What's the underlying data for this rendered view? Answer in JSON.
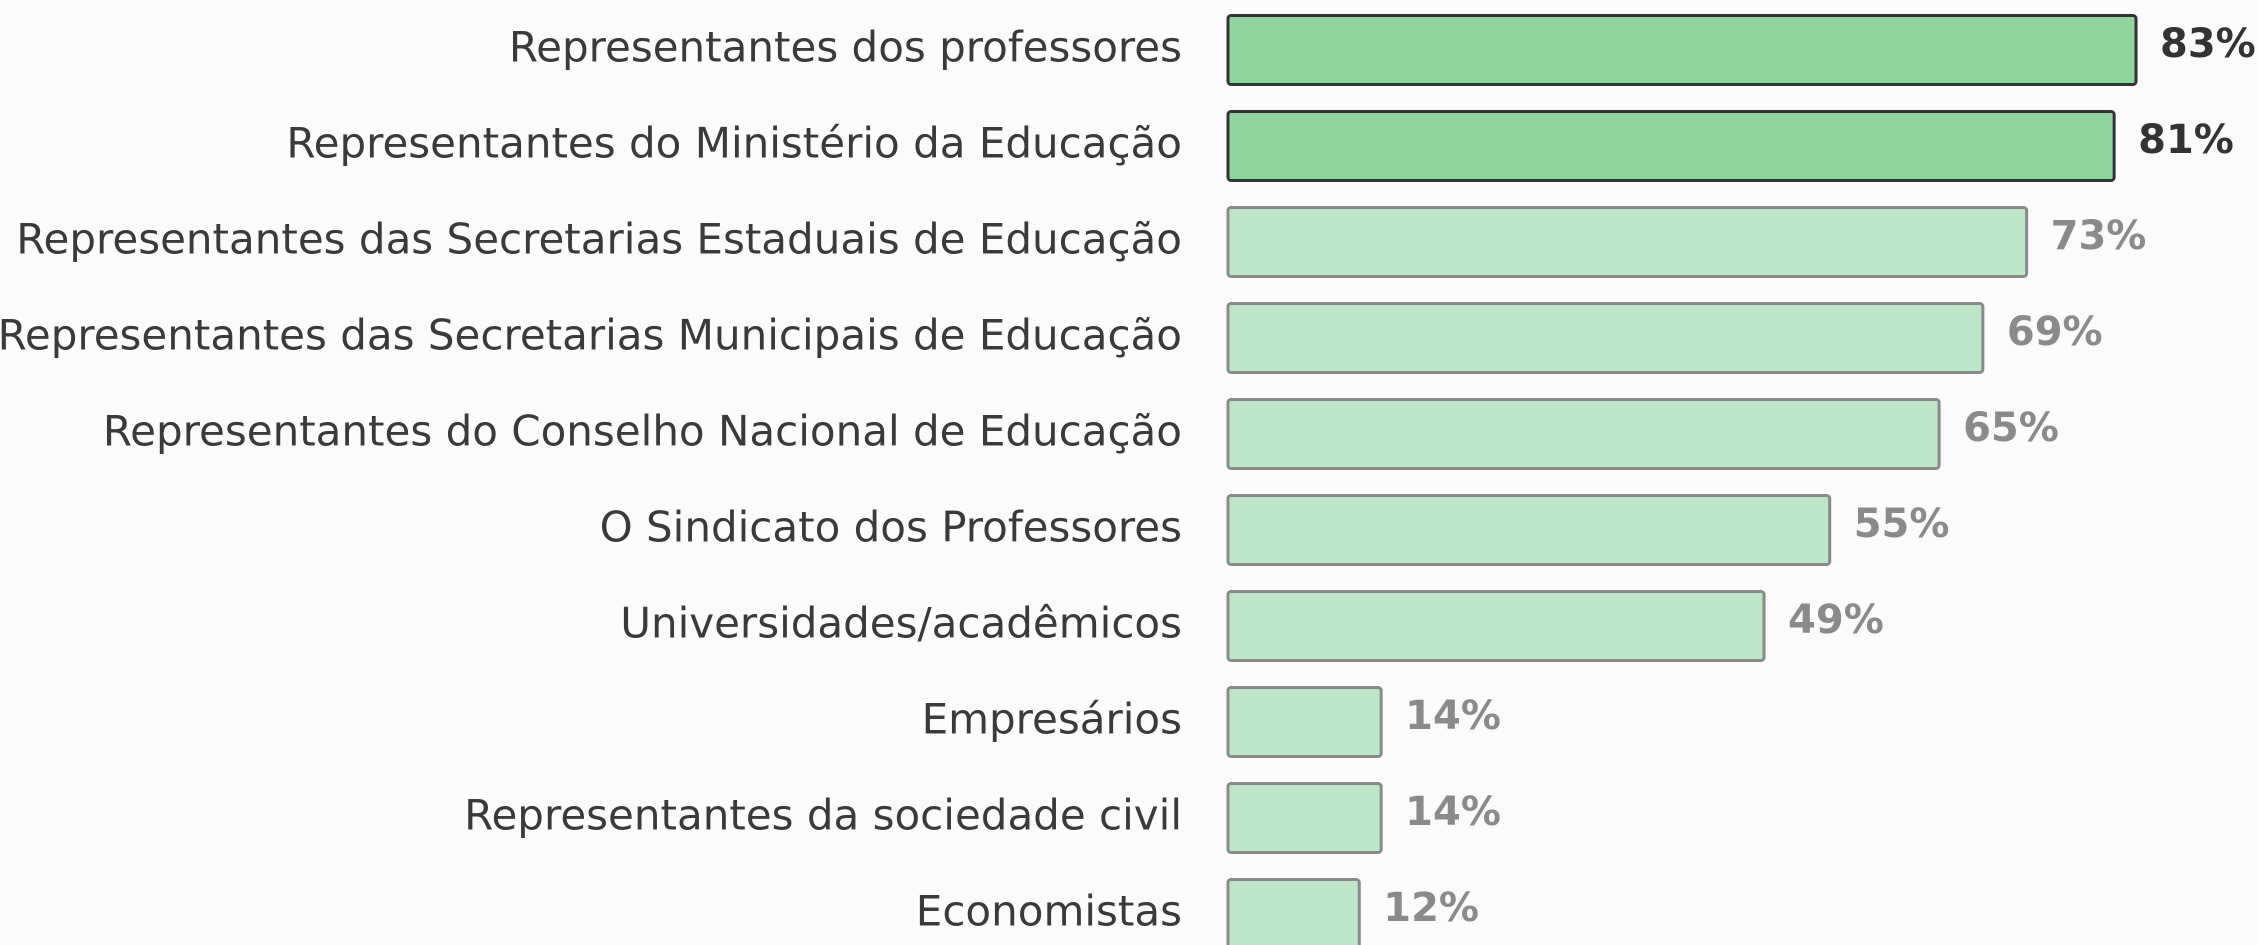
{
  "chart_data": {
    "type": "bar",
    "orientation": "horizontal",
    "categories": [
      "Representantes dos professores",
      "Representantes do Ministério da Educação",
      "Representantes das Secretarias Estaduais de Educação",
      "Representantes das Secretarias Municipais de Educação",
      "Representantes do Conselho Nacional de Educação",
      "O Sindicato dos Professores",
      "Universidades/acadêmicos",
      "Empresários",
      "Representantes da sociedade civil",
      "Economistas"
    ],
    "values": [
      83,
      81,
      73,
      69,
      65,
      55,
      49,
      14,
      14,
      12
    ],
    "value_labels": [
      "83%",
      "81%",
      "73%",
      "69%",
      "65%",
      "55%",
      "49%",
      "14%",
      "14%",
      "12%"
    ],
    "colors": [
      "#90d4a0",
      "#90d4a0",
      "#bde5c7",
      "#bde5c7",
      "#bde5c7",
      "#bde5c7",
      "#bde5c7",
      "#bde5c7",
      "#bde5c7",
      "#bde5c7"
    ],
    "edge_colors": [
      "#333333",
      "#333333",
      "#8a8a8a",
      "#8a8a8a",
      "#8a8a8a",
      "#8a8a8a",
      "#8a8a8a",
      "#8a8a8a",
      "#8a8a8a",
      "#8a8a8a"
    ]
  }
}
